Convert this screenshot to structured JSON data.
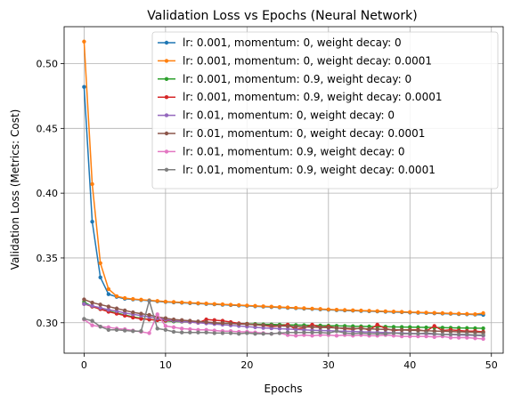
{
  "chart_data": {
    "type": "line",
    "title": "Validation Loss vs Epochs (Neural Network)",
    "xlabel": "Epochs",
    "ylabel": "Validation Loss (Metrics: Cost)",
    "xlim": [
      -2.45,
      51.45
    ],
    "ylim": [
      0.2765,
      0.5285
    ],
    "xticks": [
      "0",
      "10",
      "20",
      "30",
      "40",
      "50"
    ],
    "yticks": [
      "0.30",
      "0.35",
      "0.40",
      "0.45",
      "0.50"
    ],
    "grid": true,
    "legend_position": "top-right",
    "marker": "circle",
    "series": [
      {
        "name": "lr: 0.001, momentum: 0, weight decay: 0",
        "color": "#1f77b4",
        "values": [
          0.482,
          0.378,
          0.335,
          0.322,
          0.32,
          0.3185,
          0.318,
          0.3175,
          0.317,
          0.3165,
          0.316,
          0.3157,
          0.3154,
          0.3151,
          0.3148,
          0.3145,
          0.3142,
          0.3139,
          0.3136,
          0.3133,
          0.313,
          0.3127,
          0.3124,
          0.3121,
          0.3118,
          0.3115,
          0.3112,
          0.3109,
          0.3106,
          0.3103,
          0.31,
          0.3097,
          0.3095,
          0.3093,
          0.3091,
          0.3089,
          0.3087,
          0.3085,
          0.3083,
          0.3081,
          0.3079,
          0.3077,
          0.3075,
          0.3073,
          0.3071,
          0.3069,
          0.3067,
          0.3065,
          0.3063,
          0.3061
        ]
      },
      {
        "name": "lr: 0.001, momentum: 0, weight decay: 0.0001",
        "color": "#ff7f0e",
        "values": [
          0.517,
          0.407,
          0.346,
          0.326,
          0.3205,
          0.319,
          0.3183,
          0.3178,
          0.3173,
          0.3168,
          0.3163,
          0.316,
          0.3157,
          0.3154,
          0.3151,
          0.3148,
          0.3145,
          0.3142,
          0.3139,
          0.3136,
          0.3133,
          0.313,
          0.3127,
          0.3124,
          0.3121,
          0.3118,
          0.3115,
          0.3112,
          0.3109,
          0.3106,
          0.3103,
          0.31,
          0.3098,
          0.3096,
          0.3094,
          0.3092,
          0.309,
          0.3088,
          0.3086,
          0.3084,
          0.3082,
          0.308,
          0.3078,
          0.3076,
          0.3074,
          0.3072,
          0.307,
          0.3068,
          0.3066,
          0.3074
        ]
      },
      {
        "name": "lr: 0.001, momentum: 0.9, weight decay: 0",
        "color": "#2ca02c",
        "values": [
          0.316,
          0.3125,
          0.3105,
          0.309,
          0.3075,
          0.306,
          0.3045,
          0.3035,
          0.3025,
          0.302,
          0.3015,
          0.301,
          0.3008,
          0.3005,
          0.3003,
          0.3,
          0.2998,
          0.2997,
          0.2995,
          0.2993,
          0.2992,
          0.299,
          0.2988,
          0.2987,
          0.2985,
          0.2984,
          0.2982,
          0.2981,
          0.298,
          0.2978,
          0.2977,
          0.2976,
          0.2975,
          0.2973,
          0.2972,
          0.2971,
          0.297,
          0.2969,
          0.2968,
          0.2967,
          0.2966,
          0.2965,
          0.2964,
          0.2963,
          0.2962,
          0.2961,
          0.296,
          0.2959,
          0.2958,
          0.2957
        ]
      },
      {
        "name": "lr: 0.001, momentum: 0.9, weight decay: 0.0001",
        "color": "#d62728",
        "values": [
          0.3145,
          0.3125,
          0.3105,
          0.3085,
          0.307,
          0.3055,
          0.304,
          0.303,
          0.3025,
          0.302,
          0.3018,
          0.3015,
          0.301,
          0.3005,
          0.3,
          0.3025,
          0.302,
          0.3015,
          0.3005,
          0.2995,
          0.299,
          0.2985,
          0.298,
          0.297,
          0.2975,
          0.2985,
          0.295,
          0.296,
          0.2985,
          0.2965,
          0.297,
          0.296,
          0.2955,
          0.295,
          0.296,
          0.2945,
          0.2985,
          0.2955,
          0.294,
          0.2945,
          0.2945,
          0.2945,
          0.2935,
          0.2975,
          0.294,
          0.2945,
          0.294,
          0.2935,
          0.2935,
          0.293
        ]
      },
      {
        "name": "lr: 0.01, momentum: 0, weight decay: 0",
        "color": "#9467bd",
        "values": [
          0.3145,
          0.313,
          0.3115,
          0.31,
          0.309,
          0.3075,
          0.3065,
          0.3055,
          0.3045,
          0.3035,
          0.3025,
          0.3015,
          0.301,
          0.3005,
          0.3,
          0.2995,
          0.299,
          0.2985,
          0.298,
          0.2975,
          0.297,
          0.2965,
          0.296,
          0.2957,
          0.2954,
          0.2951,
          0.2948,
          0.2945,
          0.2942,
          0.294,
          0.2938,
          0.2936,
          0.2934,
          0.2932,
          0.293,
          0.2928,
          0.2926,
          0.2924,
          0.2922,
          0.292,
          0.2918,
          0.2916,
          0.2914,
          0.2912,
          0.291,
          0.2908,
          0.2906,
          0.2904,
          0.2902,
          0.29
        ]
      },
      {
        "name": "lr: 0.01, momentum: 0, weight decay: 0.0001",
        "color": "#8c564b",
        "values": [
          0.318,
          0.3155,
          0.314,
          0.3125,
          0.311,
          0.3095,
          0.308,
          0.307,
          0.306,
          0.3045,
          0.3035,
          0.3025,
          0.302,
          0.3015,
          0.301,
          0.3005,
          0.3,
          0.2997,
          0.2994,
          0.2991,
          0.2988,
          0.2985,
          0.2982,
          0.2979,
          0.2976,
          0.2973,
          0.297,
          0.2968,
          0.2966,
          0.2964,
          0.2962,
          0.296,
          0.2958,
          0.2956,
          0.2954,
          0.2952,
          0.295,
          0.2948,
          0.2946,
          0.2944,
          0.2942,
          0.294,
          0.2938,
          0.2936,
          0.2934,
          0.2932,
          0.293,
          0.2928,
          0.2926,
          0.2924
        ]
      },
      {
        "name": "lr: 0.01, momentum: 0.9, weight decay: 0",
        "color": "#e377c2",
        "values": [
          0.3025,
          0.298,
          0.297,
          0.2965,
          0.2955,
          0.295,
          0.294,
          0.293,
          0.292,
          0.3065,
          0.2975,
          0.2965,
          0.2955,
          0.295,
          0.2945,
          0.2945,
          0.294,
          0.2935,
          0.2935,
          0.293,
          0.293,
          0.2925,
          0.292,
          0.2915,
          0.292,
          0.2905,
          0.29,
          0.2905,
          0.29,
          0.2905,
          0.2905,
          0.29,
          0.2905,
          0.29,
          0.2905,
          0.29,
          0.29,
          0.2905,
          0.29,
          0.2895,
          0.2895,
          0.2895,
          0.2895,
          0.289,
          0.2895,
          0.2885,
          0.2885,
          0.2885,
          0.288,
          0.2875
        ]
      },
      {
        "name": "lr: 0.01, momentum: 0.9, weight decay: 0.0001",
        "color": "#7f7f7f",
        "values": [
          0.303,
          0.3015,
          0.297,
          0.2945,
          0.2945,
          0.294,
          0.2935,
          0.2935,
          0.317,
          0.2955,
          0.2945,
          0.293,
          0.2925,
          0.2925,
          0.2925,
          0.2925,
          0.292,
          0.292,
          0.292,
          0.2915,
          0.292,
          0.2915,
          0.2915,
          0.2915,
          0.292,
          0.2925,
          0.2925,
          0.2925,
          0.2925,
          0.2925,
          0.292,
          0.2935,
          0.292,
          0.2915,
          0.292,
          0.2915,
          0.2915,
          0.2915,
          0.292,
          0.2915,
          0.2915,
          0.2915,
          0.292,
          0.2915,
          0.291,
          0.291,
          0.291,
          0.291,
          0.2905,
          0.2905
        ]
      }
    ]
  }
}
